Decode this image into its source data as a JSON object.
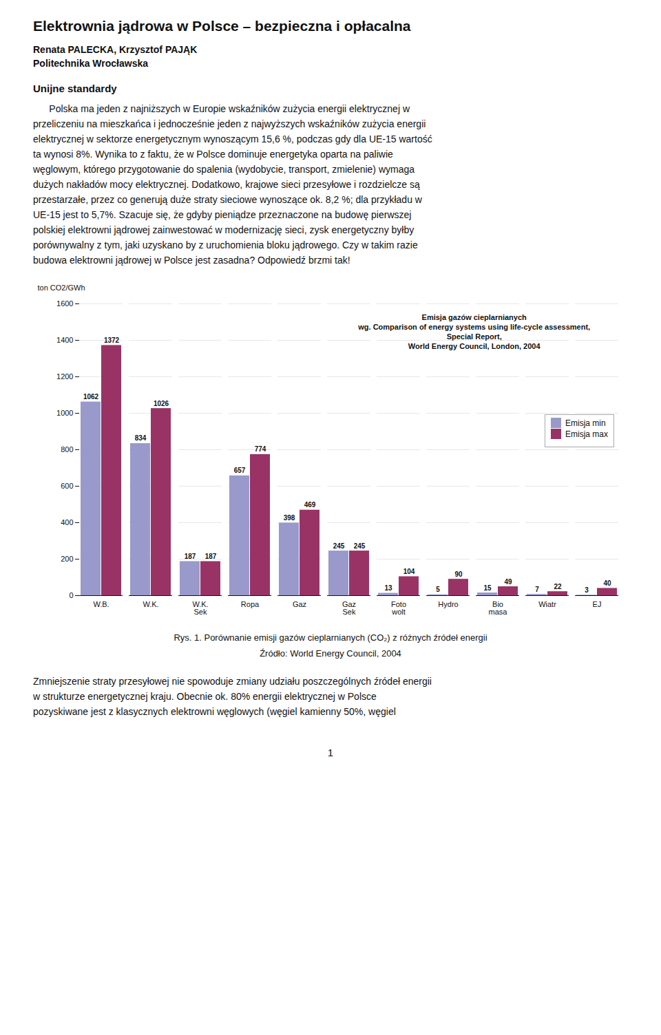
{
  "page_title": "Elektrownia jądrowa w Polsce – bezpieczna i opłacalna",
  "authors": "Renata PALECKA, Krzysztof PAJĄK",
  "institution": "Politechnika Wrocławska",
  "section_header": "Unijne standardy",
  "paragraph_1": [
    "      Polska ma jeden z najniższych w Europie wskaźników zużycia energii elektrycznej w",
    "przeliczeniu na mieszkańca i jednocześnie jeden z najwyższych wskaźników zużycia energii",
    "elektrycznej w sektorze energetycznym wynoszącym 15,6 %, podczas gdy dla UE-15 wartość",
    "ta wynosi 8%. Wynika to z faktu, że w Polsce dominuje energetyka oparta na paliwie",
    "węglowym, którego przygotowanie do spalenia (wydobycie, transport, zmielenie) wymaga",
    "dużych nakładów mocy elektrycznej. Dodatkowo, krajowe sieci przesyłowe i rozdzielcze są",
    "przestarzałe, przez co generują duże straty sieciowe wynoszące ok. 8,2 %; dla przykładu w",
    "UE-15 jest to 5,7%. Szacuje się, że gdyby pieniądze przeznaczone na budowę pierwszej",
    "polskiej elektrowni jądrowej zainwestować w modernizację sieci, zysk energetyczny byłby",
    "porównywalny z tym, jaki uzyskano by z uruchomienia bloku jądrowego. Czy w takim razie",
    "budowa elektrowni jądrowej w Polsce jest zasadna? Odpowiedź brzmi tak!"
  ],
  "chart_data": {
    "type": "bar",
    "title": "Emisja gazów cieplarnianych\nwg. Comparison of energy systems using life-cycle assessment,\nSpecial Report,\nWorld Energy Council, London, 2004",
    "ylabel": "ton CO2/GWh",
    "categories": [
      "W.B.",
      "W.K.",
      "W.K.\nSek",
      "Ropa",
      "Gaz",
      "Gaz\nSek",
      "Foto\nwolt",
      "Hydro",
      "Bio\nmasa",
      "Wiatr",
      "EJ"
    ],
    "series": [
      {
        "name": "Emisja min",
        "color": "#9999cc",
        "values": [
          1062,
          834,
          187,
          657,
          398,
          245,
          13,
          5,
          15,
          7,
          3
        ]
      },
      {
        "name": "Emisja max",
        "color": "#993366",
        "values": [
          1372,
          1026,
          187,
          774,
          469,
          245,
          104,
          90,
          49,
          22,
          40
        ]
      }
    ],
    "ylim": [
      0,
      1600
    ],
    "yticks": [
      0,
      200,
      400,
      600,
      800,
      1000,
      1200,
      1400,
      1600
    ],
    "grid": true,
    "legend": "upper right",
    "data_labels": true
  },
  "caption": [
    "Rys. 1. Porównanie emisji gazów cieplarnianych (CO₂) z różnych źródeł energii",
    "Źródło: World Energy Council, 2004"
  ],
  "paragraph_2": [
    "Zmniejszenie straty przesyłowej nie spowoduje zmiany udziału poszczególnych źródeł energii",
    "w strukturze energetycznej kraju. Obecnie ok. 80% energii elektrycznej w Polsce",
    "pozyskiwane jest z klasycznych elektrowni węglowych (węgiel kamienny 50%, węgiel"
  ],
  "page_number": "1"
}
